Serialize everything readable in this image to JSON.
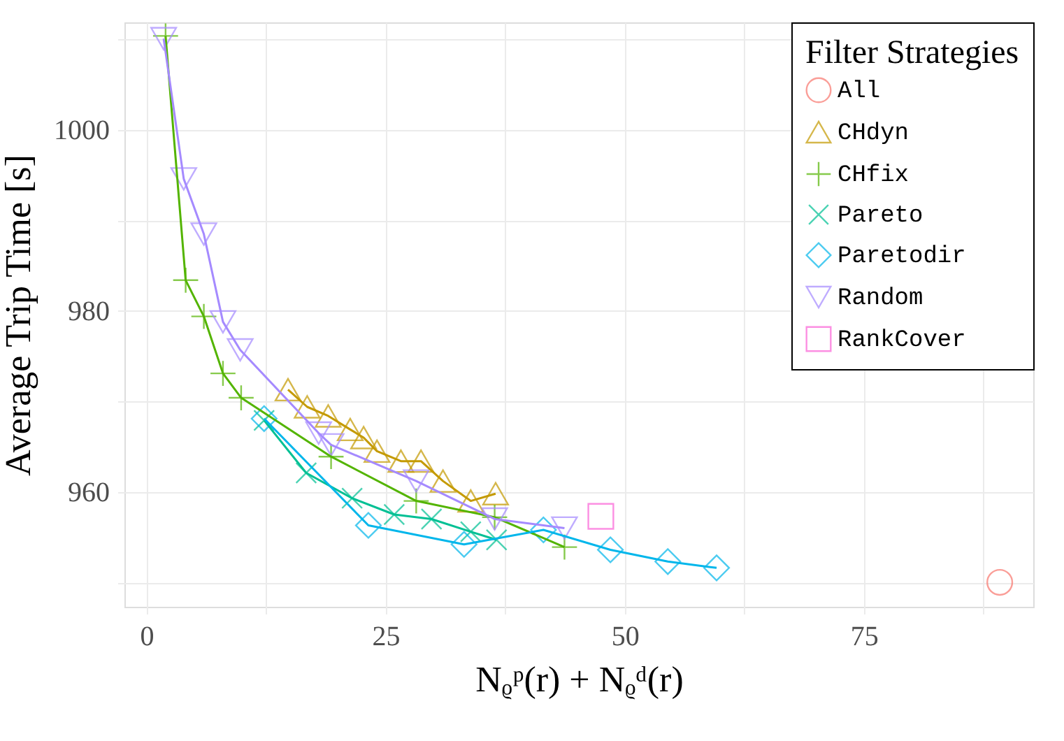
{
  "chart_data": {
    "type": "line",
    "xlabel": "Nᵨᵖ(r) + Nᵨᵈ(r)",
    "ylabel": "Average Trip Time [s]",
    "legend_title": "Filter Strategies",
    "xlim": [
      -2.3,
      92.7
    ],
    "ylim": [
      947.3,
      1011.9
    ],
    "xticks": [
      0,
      {
        "value": 12.5,
        "label": null
      },
      25,
      {
        "value": 37.5,
        "label": null
      },
      50,
      {
        "value": 62.5,
        "label": null
      },
      75,
      {
        "value": 87.5,
        "label": null
      }
    ],
    "yticks": [
      {
        "value": 950,
        "label": null
      },
      960,
      {
        "value": 970,
        "label": null
      },
      980,
      {
        "value": 990,
        "label": null
      },
      1000,
      {
        "value": 1010,
        "label": null
      }
    ],
    "grid": true,
    "legend": "top right",
    "series": [
      {
        "name": "All",
        "type": "scatter",
        "marker": "circle",
        "color": "#f8766d",
        "x": [
          89.2
        ],
        "values": [
          950.0
        ]
      },
      {
        "name": "CHdyn",
        "type": "line",
        "marker": "triangle",
        "color": "#c49a00",
        "x": [
          14.8,
          16.8,
          19.0,
          21.3,
          22.7,
          24.1,
          26.6,
          28.7,
          31.0,
          33.9,
          36.5
        ],
        "values": [
          971.3,
          969.4,
          968.4,
          966.9,
          966.0,
          964.5,
          963.4,
          963.4,
          961.2,
          959.0,
          959.8
        ]
      },
      {
        "name": "CHfix",
        "type": "line",
        "marker": "plus",
        "color": "#53b400",
        "x": [
          2.0,
          4.1,
          6.0,
          8.0,
          9.9,
          19.3,
          28.2,
          36.4,
          43.7
        ],
        "values": [
          1010.4,
          983.4,
          979.4,
          973.1,
          970.4,
          963.9,
          959.0,
          957.2,
          953.9
        ]
      },
      {
        "name": "Pareto",
        "type": "line",
        "marker": "cross",
        "color": "#00c094",
        "x": [
          12.3,
          16.7,
          21.5,
          25.9,
          29.8,
          33.9,
          36.6
        ],
        "values": [
          967.9,
          962.1,
          959.3,
          957.5,
          957.0,
          955.6,
          954.7
        ]
      },
      {
        "name": "Paretodir",
        "type": "line",
        "marker": "diamond",
        "color": "#00b6eb",
        "x": [
          12.3,
          23.2,
          33.2,
          41.5,
          48.5,
          54.5,
          59.6
        ],
        "values": [
          968.1,
          956.3,
          954.2,
          955.8,
          953.6,
          952.3,
          951.6
        ]
      },
      {
        "name": "Random",
        "type": "line",
        "marker": "triangle-down",
        "color": "#a58aff",
        "x": [
          1.8,
          3.9,
          6.0,
          8.0,
          9.8,
          18.0,
          19.3,
          28.2,
          36.4,
          43.7
        ],
        "values": [
          1010.1,
          994.6,
          988.5,
          978.8,
          975.7,
          966.5,
          965.2,
          961.2,
          957.0,
          956.0
        ]
      },
      {
        "name": "RankCover",
        "type": "scatter",
        "marker": "square",
        "color": "#fb61d7",
        "x": [
          47.5
        ],
        "values": [
          957.3
        ]
      }
    ]
  }
}
